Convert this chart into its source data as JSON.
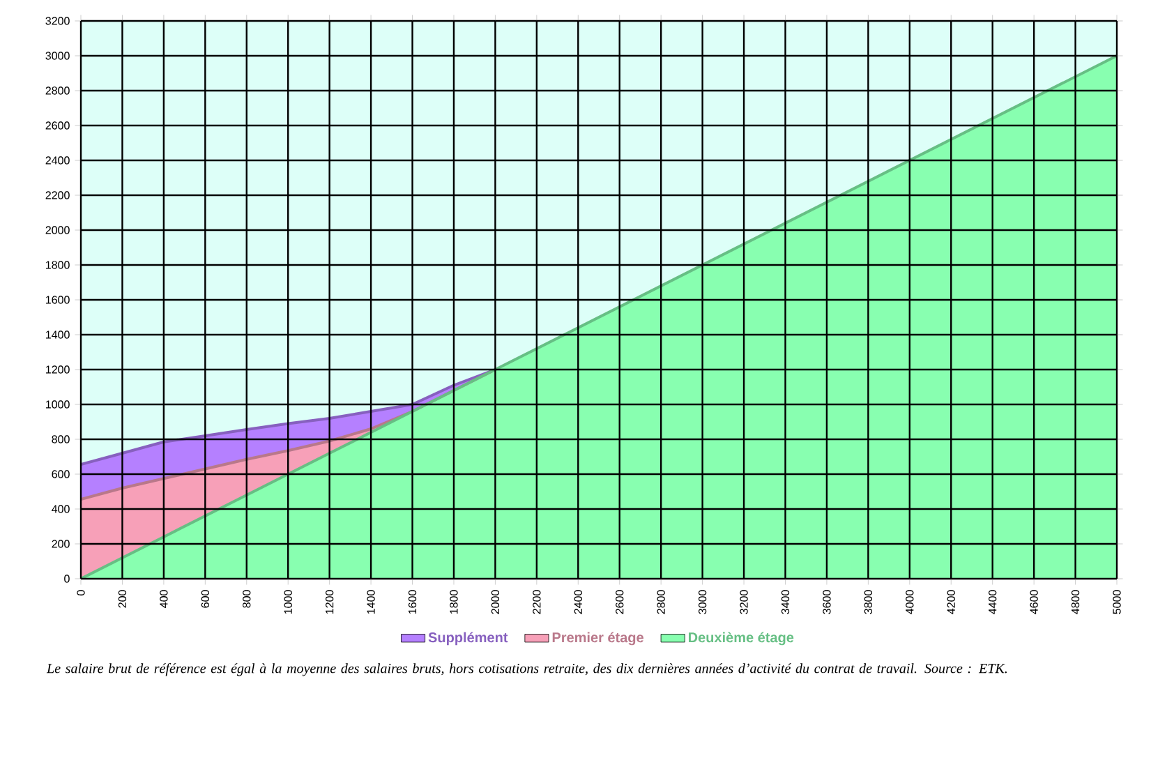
{
  "chart_data": {
    "type": "area",
    "stacked": true,
    "x": [
      0,
      200,
      400,
      600,
      800,
      1000,
      1200,
      1400,
      1600,
      1800,
      2000,
      5000
    ],
    "series": [
      {
        "name": "Deuxième étage",
        "color": "#88ffb0",
        "values": [
          0,
          120,
          240,
          360,
          480,
          600,
          720,
          840,
          960,
          1080,
          1200,
          3000
        ]
      },
      {
        "name": "Premier étage",
        "color": "#f7a0b8",
        "x": [
          0,
          200,
          400,
          600,
          800,
          1000,
          1200,
          1400,
          1600,
          1800,
          2000
        ],
        "values": [
          456,
          400,
          335,
          270,
          205,
          135,
          70,
          20,
          0,
          0,
          0
        ]
      },
      {
        "name": "Supplément",
        "color": "#b580ff",
        "x": [
          0,
          200,
          400,
          600,
          800,
          1000,
          1200,
          1400,
          1600,
          1800,
          2000
        ],
        "values": [
          200,
          200,
          210,
          190,
          171,
          155,
          130,
          100,
          40,
          30,
          0
        ]
      }
    ],
    "xlim": [
      0,
      5000
    ],
    "xticks": [
      0,
      200,
      400,
      600,
      800,
      1000,
      1200,
      1400,
      1600,
      1800,
      2000,
      2200,
      2400,
      2600,
      2800,
      3000,
      3200,
      3400,
      3600,
      3800,
      4000,
      4200,
      4400,
      4600,
      4800,
      5000
    ],
    "ylim": [
      0,
      3200
    ],
    "yticks": [
      0,
      200,
      400,
      600,
      800,
      1000,
      1200,
      1400,
      1600,
      1800,
      2000,
      2200,
      2400,
      2600,
      2800,
      3000,
      3200
    ],
    "grid": true,
    "legend": "bottom",
    "annotations": [
      "Le salaire brut de référence est égal à la moyenne des salaires bruts, hors cotisations retraite, des dix dernières années d’activité du contrat de travail. Source : ETK."
    ]
  }
}
